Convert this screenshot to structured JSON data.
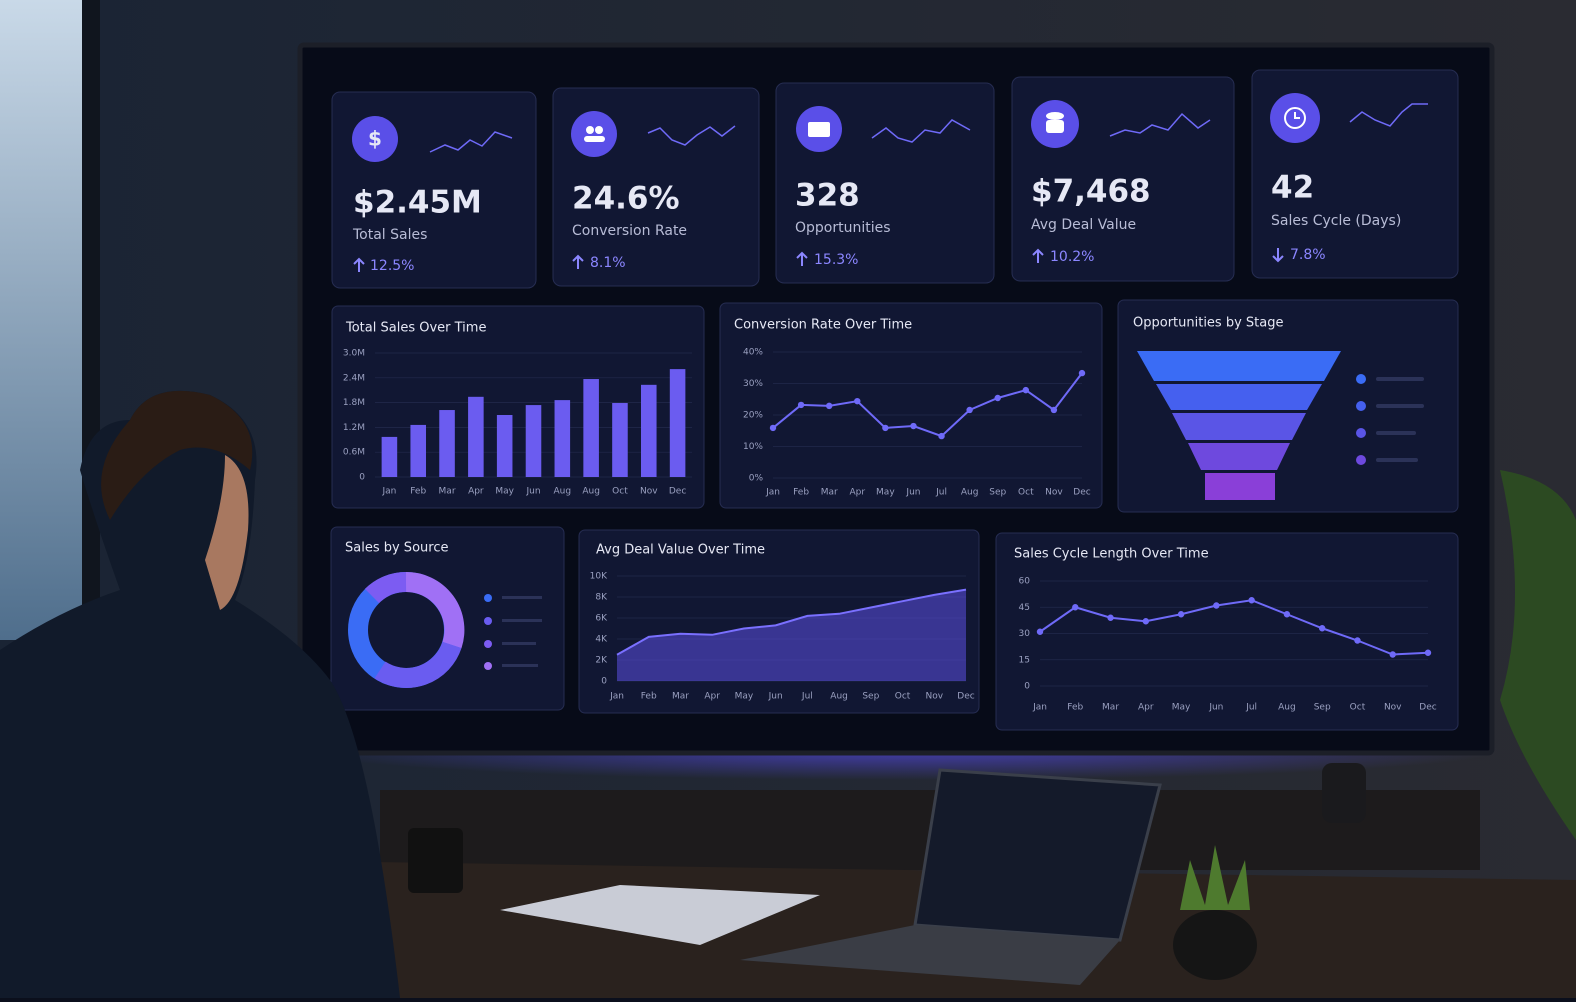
{
  "kpis": [
    {
      "value": "$2.45M",
      "label": "Total Sales",
      "change": "12.5%"
    },
    {
      "value": "24.6%",
      "label": "Conversion Rate",
      "change": "8.1%"
    },
    {
      "value": "328",
      "label": "Opportunities",
      "change": "15.3%"
    },
    {
      "value": "$7,468",
      "label": "Avg Deal Value",
      "change": "10.2%"
    },
    {
      "value": "42",
      "label": "Sales Cycle (Days)",
      "change": "7.8%"
    }
  ],
  "chart_data": [
    {
      "type": "bar",
      "title": "Total Sales Over Time",
      "categories": [
        "Jan",
        "Feb",
        "Mar",
        "Apr",
        "May",
        "Jun",
        "Aug",
        "Aug",
        "Oct",
        "Nov",
        "Dec"
      ],
      "values": [
        0.97,
        1.26,
        1.62,
        1.94,
        1.5,
        1.74,
        1.86,
        2.37,
        1.79,
        2.23,
        2.61
      ],
      "color": "#6b5cf0",
      "ylim": [
        0,
        3
      ],
      "yticks": [
        0,
        {
          "value": 0.6,
          "label": "0.6M"
        },
        {
          "value": 1.2,
          "label": "1.2M"
        },
        {
          "value": 1.8,
          "label": "1.8M"
        },
        {
          "value": 2.4,
          "label": "2.4M"
        },
        {
          "value": 3,
          "label": "3.0M"
        }
      ],
      "grid": true
    },
    {
      "type": "line",
      "title": "Conversion Rate Over Time",
      "categories": [
        "Jan",
        "Feb",
        "Mar",
        "Apr",
        "May",
        "Jun",
        "Jul",
        "Aug",
        "Sep",
        "Oct",
        "Nov",
        "Dec"
      ],
      "values": [
        15.9,
        23.2,
        22.9,
        24.4,
        15.9,
        16.5,
        13.3,
        21.6,
        25.4,
        27.9,
        21.6,
        33.3
      ],
      "color": "#6f6af8",
      "ylim": [
        0,
        40
      ],
      "yticks": [
        {
          "value": 0,
          "label": "0%"
        },
        {
          "value": 10,
          "label": "10%"
        },
        {
          "value": 20,
          "label": "20%"
        },
        {
          "value": 30,
          "label": "30%"
        },
        {
          "value": 40,
          "label": "40%"
        }
      ],
      "grid": true
    },
    {
      "type": "funnel",
      "title": "Opportunities by Stage"
    },
    {
      "type": "donut",
      "title": "Sales by Source"
    },
    {
      "type": "area",
      "title": "Avg Deal Value Over Time",
      "categories": [
        "Jan",
        "Feb",
        "Mar",
        "Apr",
        "May",
        "Jun",
        "Jul",
        "Aug",
        "Sep",
        "Oct",
        "Nov",
        "Dec"
      ],
      "values": [
        2.5,
        4.2,
        4.5,
        4.4,
        5.0,
        5.3,
        6.2,
        6.4,
        7.0,
        7.6,
        8.2,
        8.7
      ],
      "color": "#5b4fe0",
      "ylim": [
        0,
        10
      ],
      "yticks": [
        0,
        {
          "value": 2,
          "label": "2K"
        },
        {
          "value": 4,
          "label": "4K"
        },
        {
          "value": 6,
          "label": "6K"
        },
        {
          "value": 8,
          "label": "8K"
        },
        {
          "value": 10,
          "label": "10K"
        }
      ],
      "grid": true
    },
    {
      "type": "line",
      "title": "Sales Cycle Length Over Time",
      "categories": [
        "Jan",
        "Feb",
        "Mar",
        "Apr",
        "May",
        "Jun",
        "Jul",
        "Aug",
        "Sep",
        "Oct",
        "Nov",
        "Dec"
      ],
      "values": [
        31,
        45,
        39,
        37,
        41,
        46,
        49,
        41,
        33,
        26,
        18,
        19
      ],
      "color": "#6f6af8",
      "ylim": [
        0,
        60
      ],
      "yticks": [
        0,
        15,
        30,
        45,
        60
      ],
      "grid": true
    }
  ]
}
